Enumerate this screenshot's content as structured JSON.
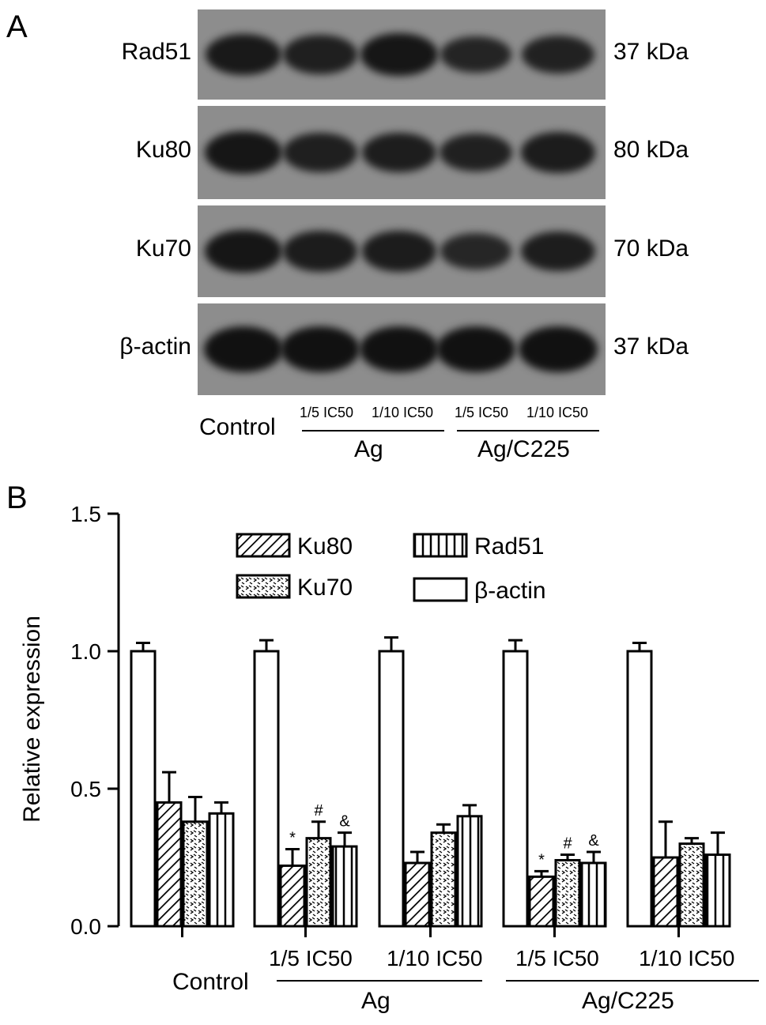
{
  "panel_a": {
    "letter": "A",
    "rows": [
      {
        "protein": "Rad51",
        "kda": "37 kDa",
        "intensity": [
          0.85,
          0.75,
          0.9,
          0.65,
          0.7
        ]
      },
      {
        "protein": "Ku80",
        "kda": "80 kDa",
        "intensity": [
          0.9,
          0.75,
          0.78,
          0.72,
          0.8
        ]
      },
      {
        "protein": "Ku70",
        "kda": "70 kDa",
        "intensity": [
          0.9,
          0.8,
          0.8,
          0.62,
          0.78
        ]
      },
      {
        "protein": "β-actin",
        "kda": "37 kDa",
        "intensity": [
          1.0,
          1.0,
          1.0,
          1.0,
          1.0
        ]
      }
    ],
    "lanes": {
      "control": "Control",
      "sub": [
        "1/5 IC50",
        "1/10 IC50",
        "1/5 IC50",
        "1/10 IC50"
      ],
      "groups": [
        "Ag",
        "Ag/C225"
      ]
    }
  },
  "panel_b": {
    "letter": "B",
    "group_sublabels": [
      "1/5 IC50",
      "1/10 IC50",
      "1/5 IC50",
      "1/10 IC50"
    ],
    "group_labels": [
      "Ag",
      "Ag/C225"
    ],
    "control_label": "Control"
  },
  "chart_data": {
    "type": "bar",
    "ylabel": "Relative expression",
    "ylim": [
      0,
      1.5
    ],
    "yticks": [
      "0.0",
      "0.5",
      "1.0",
      "1.5"
    ],
    "categories": [
      "Control",
      "Ag 1/5 IC50",
      "Ag 1/10 IC50",
      "Ag/C225 1/5 IC50",
      "Ag/C225 1/10 IC50"
    ],
    "series": [
      {
        "name": "β-actin",
        "pattern": "white",
        "values": [
          1.0,
          1.0,
          1.0,
          1.0,
          1.0
        ],
        "errors": [
          0.03,
          0.04,
          0.05,
          0.04,
          0.03
        ]
      },
      {
        "name": "Ku80",
        "pattern": "diagonal",
        "values": [
          0.45,
          0.22,
          0.23,
          0.18,
          0.25
        ],
        "errors": [
          0.11,
          0.06,
          0.04,
          0.02,
          0.13
        ]
      },
      {
        "name": "Ku70",
        "pattern": "dots",
        "values": [
          0.38,
          0.32,
          0.34,
          0.24,
          0.3
        ],
        "errors": [
          0.09,
          0.06,
          0.03,
          0.02,
          0.02
        ]
      },
      {
        "name": "Rad51",
        "pattern": "vertical",
        "values": [
          0.41,
          0.29,
          0.4,
          0.23,
          0.26
        ],
        "errors": [
          0.04,
          0.05,
          0.04,
          0.04,
          0.08
        ]
      }
    ],
    "annotations": [
      {
        "group": 1,
        "series": "Ku80",
        "text": "*"
      },
      {
        "group": 1,
        "series": "Ku70",
        "text": "#"
      },
      {
        "group": 1,
        "series": "Rad51",
        "text": "&"
      },
      {
        "group": 3,
        "series": "Ku80",
        "text": "*"
      },
      {
        "group": 3,
        "series": "Ku70",
        "text": "#"
      },
      {
        "group": 3,
        "series": "Rad51",
        "text": "&"
      }
    ],
    "legend": {
      "placement": "top",
      "entries": [
        "Ku80",
        "Ku70",
        "Rad51",
        "β-actin"
      ]
    },
    "grid": false
  }
}
